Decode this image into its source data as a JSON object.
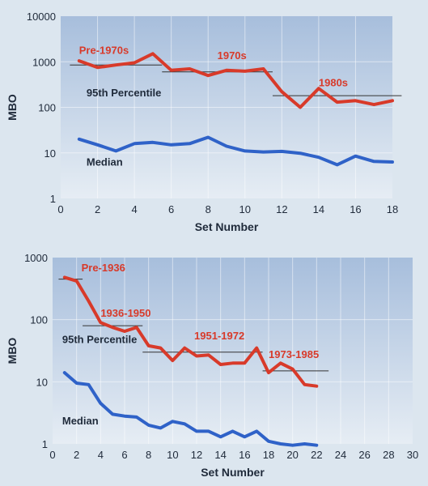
{
  "chart_data": [
    {
      "type": "line",
      "xlabel": "Set Number",
      "ylabel": "MBO",
      "xlim": [
        0,
        18
      ],
      "ylim": [
        1,
        10000
      ],
      "yscale": "log",
      "xticks": [
        0,
        2,
        4,
        6,
        8,
        10,
        12,
        14,
        16,
        18
      ],
      "yticks": [
        1,
        10,
        100,
        1000,
        10000
      ],
      "xtick_labels": [
        "0",
        "2",
        "4",
        "6",
        "8",
        "10",
        "12",
        "14",
        "16",
        "18"
      ],
      "ytick_labels": [
        "1",
        "10",
        "100",
        "1000",
        "10000"
      ],
      "grid": true,
      "series": [
        {
          "name": "95th Percentile",
          "color": "#d83a2a",
          "x": [
            1,
            2,
            3,
            4,
            5,
            6,
            7,
            8,
            9,
            10,
            11,
            12,
            13,
            14,
            15,
            16,
            17,
            18
          ],
          "values": [
            1050,
            750,
            850,
            950,
            1500,
            650,
            700,
            500,
            650,
            620,
            700,
            220,
            100,
            260,
            130,
            140,
            115,
            140
          ]
        },
        {
          "name": "Median",
          "color": "#2f62c8",
          "x": [
            1,
            2,
            3,
            4,
            5,
            6,
            7,
            8,
            9,
            10,
            11,
            12,
            13,
            14,
            15,
            16,
            17,
            18
          ],
          "values": [
            20,
            15,
            11,
            16,
            17,
            15,
            16,
            22,
            14,
            11,
            10.5,
            10.8,
            9.8,
            8,
            5.5,
            8.5,
            6.5,
            6.3
          ]
        }
      ],
      "reference_lines": [
        {
          "x0": 0.5,
          "x1": 5.5,
          "y": 850
        },
        {
          "x0": 5.5,
          "x1": 11.5,
          "y": 600
        },
        {
          "x0": 11.5,
          "x1": 18.5,
          "y": 180
        }
      ],
      "annotations": [
        {
          "text": "Pre-1970s",
          "x": 1,
          "y": 1500,
          "color": "red"
        },
        {
          "text": "1970s",
          "x": 8.5,
          "y": 1150,
          "color": "red"
        },
        {
          "text": "1980s",
          "x": 14,
          "y": 290,
          "color": "red"
        },
        {
          "text": "95th Percentile",
          "x": 1.4,
          "y": 175,
          "color": "dark"
        },
        {
          "text": "Median",
          "x": 1.4,
          "y": 5.2,
          "color": "dark"
        }
      ]
    },
    {
      "type": "line",
      "xlabel": "Set Number",
      "ylabel": "MBO",
      "xlim": [
        0,
        30
      ],
      "ylim": [
        1,
        1000
      ],
      "yscale": "log",
      "xticks": [
        0,
        2,
        4,
        6,
        8,
        10,
        12,
        14,
        16,
        18,
        20,
        22,
        24,
        26,
        28,
        30
      ],
      "yticks": [
        1,
        10,
        100,
        1000
      ],
      "xtick_labels": [
        "0",
        "2",
        "4",
        "6",
        "8",
        "10",
        "12",
        "14",
        "16",
        "18",
        "20",
        "22",
        "24",
        "26",
        "28",
        "30"
      ],
      "ytick_labels": [
        "1",
        "10",
        "100",
        "1000"
      ],
      "grid": true,
      "series": [
        {
          "name": "95th Percentile",
          "color": "#d83a2a",
          "x": [
            1,
            2,
            3,
            4,
            5,
            6,
            7,
            8,
            9,
            10,
            11,
            12,
            13,
            14,
            15,
            16,
            17,
            18,
            19,
            20,
            21,
            22
          ],
          "values": [
            480,
            420,
            200,
            90,
            75,
            65,
            75,
            38,
            35,
            22,
            35,
            26,
            27,
            19,
            20,
            20,
            35,
            14,
            20,
            16,
            9,
            8.5
          ]
        },
        {
          "name": "Median",
          "color": "#2f62c8",
          "x": [
            1,
            2,
            3,
            4,
            5,
            6,
            7,
            8,
            9,
            10,
            11,
            12,
            13,
            14,
            15,
            16,
            17,
            18,
            19,
            20,
            21,
            22
          ],
          "values": [
            14,
            9.5,
            9,
            4.5,
            3,
            2.8,
            2.7,
            2.0,
            1.8,
            2.3,
            2.1,
            1.6,
            1.6,
            1.3,
            1.6,
            1.3,
            1.6,
            1.1,
            1.0,
            0.95,
            1.0,
            0.95
          ]
        }
      ],
      "reference_lines": [
        {
          "x0": 0.5,
          "x1": 2.5,
          "y": 450
        },
        {
          "x0": 2.5,
          "x1": 7.5,
          "y": 80
        },
        {
          "x0": 7.5,
          "x1": 17.5,
          "y": 30
        },
        {
          "x0": 17.5,
          "x1": 23,
          "y": 15
        }
      ],
      "annotations": [
        {
          "text": "Pre-1936",
          "x": 2.4,
          "y": 600,
          "color": "red"
        },
        {
          "text": "1936-1950",
          "x": 4,
          "y": 112,
          "color": "red"
        },
        {
          "text": "1951-1972",
          "x": 11.8,
          "y": 48,
          "color": "red"
        },
        {
          "text": "1973-1985",
          "x": 18,
          "y": 24,
          "color": "red"
        },
        {
          "text": "95th Percentile",
          "x": 0.8,
          "y": 42,
          "color": "dark"
        },
        {
          "text": "Median",
          "x": 0.8,
          "y": 2.05,
          "color": "dark"
        }
      ]
    }
  ]
}
